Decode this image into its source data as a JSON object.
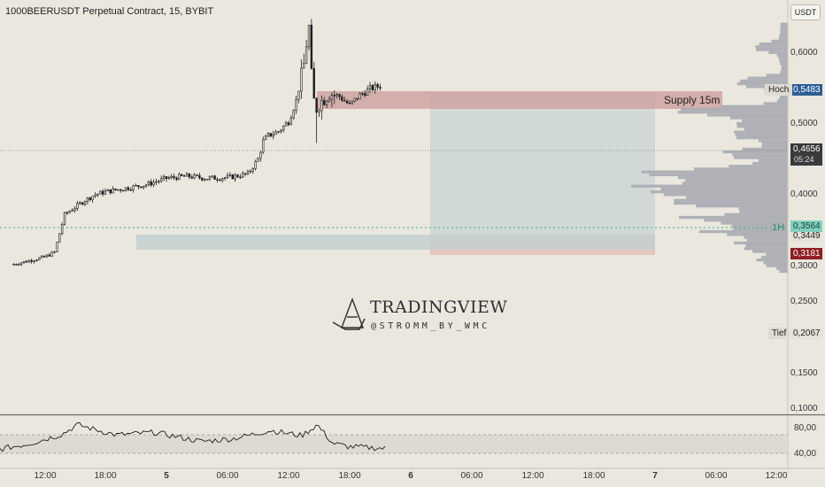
{
  "header": {
    "title": "1000BEERUSDT Perpetual Contract, 15, BYBIT",
    "currency_button": "USDT"
  },
  "price_axis": {
    "ticks": [
      "0,6000",
      "0,5000",
      "0,4000",
      "0,3000",
      "0,2500",
      "0,1500",
      "0,1000"
    ],
    "hidden_tick": "0,3449"
  },
  "markers": {
    "high_label": "Hoch",
    "high_value": "0,5483",
    "current_price": "0,4656",
    "countdown": "05:24",
    "oneh_label": "1H",
    "oneh_value": "0,3564",
    "red_value": "0,3181",
    "low_label": "Tief",
    "low_value": "0,2067"
  },
  "annotations": {
    "supply_label": "Supply 15m"
  },
  "rsi_axis": {
    "ticks": [
      "80,00",
      "40,00"
    ]
  },
  "time_axis": {
    "ticks": [
      "12:00",
      "18:00",
      "5",
      "06:00",
      "12:00",
      "18:00",
      "6",
      "06:00",
      "12:00",
      "18:00",
      "7",
      "06:00",
      "12:00"
    ]
  },
  "watermark": {
    "title": "TRADINGVIEW",
    "subtitle": "@STROMM_BY_WMC"
  },
  "colors": {
    "background": "#eae7de",
    "candles": "#1f1f1f",
    "supply_zone": "#cfa3a1",
    "target_zone": "#d1d9d5",
    "risk_zone": "#e3c6c2",
    "demand_zone": "#c3cfcf",
    "volume_profile": "#a9abb3",
    "oneh_line": "#2fb387",
    "rsi_band": "#dcdad3"
  },
  "chart_data": {
    "type": "candlestick",
    "interval": "15",
    "symbol": "1000BEERUSDT",
    "exchange": "BYBIT",
    "ylim": [
      0.095,
      0.635
    ],
    "price_path": [
      [
        "4 09:00",
        0.215
      ],
      [
        "4 12:00",
        0.225
      ],
      [
        "4 13:00",
        0.232
      ],
      [
        "4 14:00",
        0.285
      ],
      [
        "4 15:00",
        0.295
      ],
      [
        "4 16:00",
        0.305
      ],
      [
        "4 17:00",
        0.313
      ],
      [
        "4 18:00",
        0.317
      ],
      [
        "4 20:00",
        0.322
      ],
      [
        "4 22:00",
        0.327
      ],
      [
        "5 00:00",
        0.336
      ],
      [
        "5 02:00",
        0.339
      ],
      [
        "5 04:00",
        0.336
      ],
      [
        "5 06:00",
        0.337
      ],
      [
        "5 08:00",
        0.342
      ],
      [
        "5 09:00",
        0.363
      ],
      [
        "5 09:30",
        0.388
      ],
      [
        "5 10:00",
        0.396
      ],
      [
        "5 11:00",
        0.402
      ],
      [
        "5 12:00",
        0.416
      ],
      [
        "5 12:45",
        0.445
      ],
      [
        "5 13:30",
        0.496
      ],
      [
        "5 13:50",
        0.536
      ],
      [
        "5 14:00",
        0.548
      ],
      [
        "5 14:20",
        0.457
      ],
      [
        "5 14:40",
        0.432
      ],
      [
        "5 15:00",
        0.441
      ],
      [
        "5 16:00",
        0.456
      ],
      [
        "5 17:00",
        0.451
      ],
      [
        "5 18:00",
        0.439
      ],
      [
        "5 19:00",
        0.453
      ],
      [
        "5 20:00",
        0.462
      ],
      [
        "5 21:00",
        0.466
      ]
    ],
    "high": 0.5483,
    "low": 0.2067,
    "last": 0.4656,
    "zones": {
      "supply_15m": [
        0.5135,
        0.5483
      ],
      "target": [
        0.3181,
        0.533
      ],
      "risk": [
        0.3181,
        0.3449
      ],
      "demand": [
        0.3181,
        0.342
      ]
    },
    "level_1h": 0.3564,
    "rsi": {
      "ylim": [
        20,
        100
      ],
      "bands": [
        40,
        80
      ],
      "path": [
        [
          0,
          50
        ],
        [
          0.08,
          59
        ],
        [
          0.16,
          73
        ],
        [
          0.2,
          88
        ],
        [
          0.3,
          72
        ],
        [
          0.4,
          76
        ],
        [
          0.52,
          62
        ],
        [
          0.6,
          66
        ],
        [
          0.7,
          79
        ],
        [
          0.78,
          71
        ],
        [
          0.82,
          88
        ],
        [
          0.86,
          59
        ],
        [
          0.9,
          54
        ],
        [
          1,
          51
        ]
      ]
    },
    "volume_profile": "visible range"
  }
}
